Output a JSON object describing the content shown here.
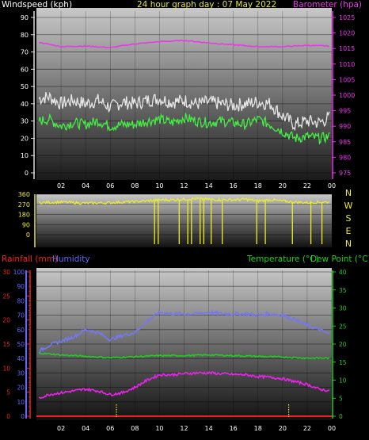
{
  "header": {
    "wind_title": "Windspeed (kph)",
    "graph_title": "24 hour graph day : 07 May 2022",
    "baro_title": "Barometer (hpa)"
  },
  "bottom_header": {
    "rain_title": "Rainfall (mm)",
    "humidity_title": "Humidity",
    "temp_title": "Temperature (°C)",
    "dew_title": "Dew Point (°C)"
  },
  "colors": {
    "wind_gust": "#e6e6e6",
    "wind_avg": "#44ee44",
    "barometer": "#ee33ee",
    "direction": "#eeee22",
    "humidity": "#7777ee",
    "temperature": "#22cc22",
    "dew_point": "#ee22ee",
    "rainfall": "#ee2222",
    "rain_axis": "#ee2222",
    "humidity_axis": "#6666ff",
    "temp_axis": "#22cc22"
  },
  "chart_data": [
    {
      "type": "line",
      "title": "24 hour graph day : 07 May 2022",
      "x_ticks": [
        "02",
        "04",
        "06",
        "08",
        "10",
        "12",
        "14",
        "16",
        "18",
        "20",
        "22",
        "00"
      ],
      "xlim": [
        0,
        24
      ],
      "y_left": {
        "label": "Windspeed (kph)",
        "ticks": [
          0,
          10,
          20,
          30,
          40,
          50,
          60,
          70,
          80,
          90
        ],
        "range": [
          0,
          90
        ]
      },
      "y_right": {
        "label": "Barometer (hpa)",
        "ticks": [
          975,
          980,
          985,
          990,
          995,
          1000,
          1005,
          1010,
          1015,
          1020,
          1025
        ],
        "range": [
          975,
          1025
        ]
      },
      "series": [
        {
          "name": "Barometer (hpa)",
          "axis": "right",
          "x": [
            0.2,
            2,
            4,
            6,
            8,
            10,
            12,
            14,
            16,
            18,
            20,
            22,
            23.8
          ],
          "values": [
            1017,
            1015.6,
            1015.8,
            1015.3,
            1016.5,
            1017.2,
            1017.6,
            1016.8,
            1016.2,
            1015.6,
            1015.6,
            1016,
            1015.8
          ]
        }
      ],
      "unlabeled_series": [
        {
          "key": "wind_gust",
          "axis": "left",
          "x": [
            0.2,
            1,
            2,
            3,
            4,
            5,
            6,
            7,
            8,
            9,
            10,
            11,
            12,
            13,
            14,
            15,
            16,
            17,
            18,
            19,
            20,
            21,
            22,
            23,
            23.8
          ],
          "values": [
            43,
            44,
            40,
            42,
            40,
            42,
            38,
            41,
            40,
            42,
            43,
            41,
            42,
            40,
            41,
            40,
            39,
            40,
            41,
            40,
            33,
            28,
            30,
            29,
            32
          ]
        },
        {
          "key": "wind_avg",
          "axis": "left",
          "x": [
            0.2,
            1,
            2,
            3,
            4,
            5,
            6,
            7,
            8,
            9,
            10,
            11,
            12,
            13,
            14,
            15,
            16,
            17,
            18,
            19,
            20,
            21,
            22,
            23,
            23.8
          ],
          "values": [
            30,
            31,
            27,
            29,
            28,
            30,
            27,
            28,
            28,
            30,
            31,
            29,
            32,
            30,
            29,
            30,
            29,
            28,
            31,
            28,
            24,
            20,
            21,
            20,
            21
          ]
        }
      ]
    },
    {
      "type": "line",
      "x_ticks": [
        "02",
        "04",
        "06",
        "08",
        "10",
        "12",
        "14",
        "16",
        "18",
        "20",
        "22",
        "00"
      ],
      "xlim": [
        0,
        24
      ],
      "y_left": {
        "ticks": [
          0,
          90,
          180,
          270,
          360
        ],
        "range": [
          0,
          360
        ]
      },
      "y_right": {
        "labels": [
          "N",
          "W",
          "S",
          "E",
          "N"
        ]
      },
      "unlabeled_series": [
        {
          "key": "wind_direction",
          "axis": "left",
          "x": [
            0.2,
            2,
            4,
            6,
            8,
            9,
            10,
            11,
            12,
            13,
            14,
            15,
            16,
            17,
            18,
            19,
            20,
            21,
            22,
            23,
            23.8
          ],
          "values": [
            285,
            290,
            280,
            285,
            295,
            300,
            310,
            310,
            315,
            320,
            315,
            310,
            310,
            315,
            300,
            310,
            300,
            290,
            285,
            290,
            290
          ],
          "dips_at_x": [
            9.6,
            9.9,
            11.6,
            12.3,
            12.6,
            13.3,
            13.6,
            14.2,
            15.1,
            17.9,
            18.6,
            20.8,
            22.3,
            23.2
          ],
          "dips_to": [
            0,
            0,
            0,
            0,
            0,
            0,
            0,
            0,
            0,
            0,
            0,
            0,
            0,
            0
          ]
        }
      ]
    },
    {
      "type": "line",
      "x_ticks": [
        "02",
        "04",
        "06",
        "08",
        "10",
        "12",
        "14",
        "16",
        "18",
        "20",
        "22",
        "00"
      ],
      "xlim": [
        0,
        24
      ],
      "y_left_outer": {
        "label": "Rainfall (mm)",
        "ticks": [
          0,
          5,
          10,
          15,
          20,
          25,
          30
        ],
        "range": [
          0,
          30
        ]
      },
      "y_left_inner": {
        "label": "Humidity",
        "ticks": [
          0,
          10,
          20,
          30,
          40,
          50,
          60,
          70,
          80,
          90,
          100
        ],
        "range": [
          0,
          100
        ]
      },
      "y_right": {
        "label": "Temperature (°C)",
        "ticks": [
          0,
          5,
          10,
          15,
          20,
          25,
          30,
          35,
          40
        ],
        "range": [
          0,
          40
        ]
      },
      "series": [
        {
          "name": "Humidity",
          "axis": "humidity",
          "x": [
            0.2,
            1,
            2,
            3,
            4,
            5,
            6,
            7,
            8,
            9,
            10,
            11,
            12,
            13,
            14,
            15,
            16,
            17,
            18,
            19,
            20,
            21,
            22,
            23,
            23.8
          ],
          "values": [
            45,
            49,
            52,
            55,
            60,
            58,
            53,
            56,
            58,
            66,
            72,
            71,
            71,
            71,
            72,
            71,
            71,
            71,
            70,
            71,
            70,
            67,
            63,
            60,
            57
          ]
        },
        {
          "name": "Temperature (°C)",
          "axis": "right",
          "x": [
            0.2,
            2,
            4,
            6,
            8,
            10,
            12,
            14,
            16,
            18,
            20,
            22,
            23.8
          ],
          "values": [
            17.5,
            17,
            16.6,
            16.2,
            16.5,
            16.8,
            16.8,
            17,
            16.8,
            16.6,
            16.4,
            16.1,
            16.1
          ]
        },
        {
          "name": "Dew Point (°C)",
          "axis": "right",
          "x": [
            0.2,
            1,
            2,
            3,
            4,
            5,
            6,
            7,
            8,
            9,
            10,
            11,
            12,
            13,
            14,
            15,
            16,
            17,
            18,
            19,
            20,
            21,
            22,
            23,
            23.8
          ],
          "values": [
            5,
            6,
            6.5,
            7,
            7.5,
            7,
            6,
            6.5,
            8,
            10,
            11.5,
            11.5,
            11.8,
            12,
            12,
            11.8,
            11.6,
            11.5,
            11,
            10.8,
            10.4,
            9.6,
            8.8,
            7.5,
            7
          ]
        },
        {
          "name": "Rainfall (mm)",
          "axis": "rain",
          "x": [
            0,
            24
          ],
          "values": [
            0,
            0
          ]
        }
      ],
      "markers_at_x": [
        6.5,
        20.5
      ]
    }
  ]
}
